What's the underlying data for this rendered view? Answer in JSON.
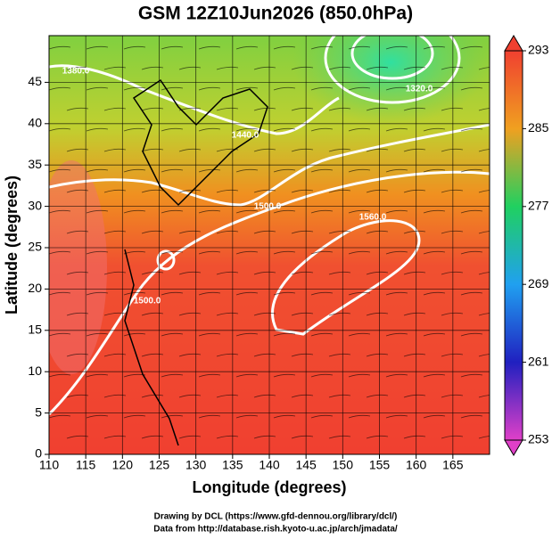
{
  "chart_data": {
    "type": "map",
    "title": "GSM 12Z10Jun2026 (850.0hPa)",
    "xlabel": "Longitude (degrees)",
    "ylabel": "Latitude  (degrees)",
    "xlim": [
      110,
      170
    ],
    "xticks": [
      110,
      115,
      120,
      125,
      130,
      135,
      140,
      145,
      150,
      155,
      160,
      165
    ],
    "ylim": [
      0,
      50
    ],
    "yticks": [
      0,
      5,
      10,
      15,
      20,
      25,
      30,
      35,
      40,
      45
    ],
    "grid": true,
    "colorbar": {
      "lim": [
        253,
        293
      ],
      "ticks": [
        253,
        261,
        269,
        277,
        285,
        293
      ],
      "colors": [
        "#e040c8",
        "#2020c0",
        "#20a0f0",
        "#20d060",
        "#f0a020",
        "#f04030"
      ]
    },
    "contour_labels": [
      "1560.0",
      "1500.0",
      "1500.0",
      "1440.0",
      "1380.0",
      "1320.0"
    ],
    "footer": [
      "Drawing by DCL (https://www.gfd-dennou.org/library/dcl/)",
      "Data from http://database.rish.kyoto-u.ac.jp/arch/jmadata/"
    ]
  }
}
